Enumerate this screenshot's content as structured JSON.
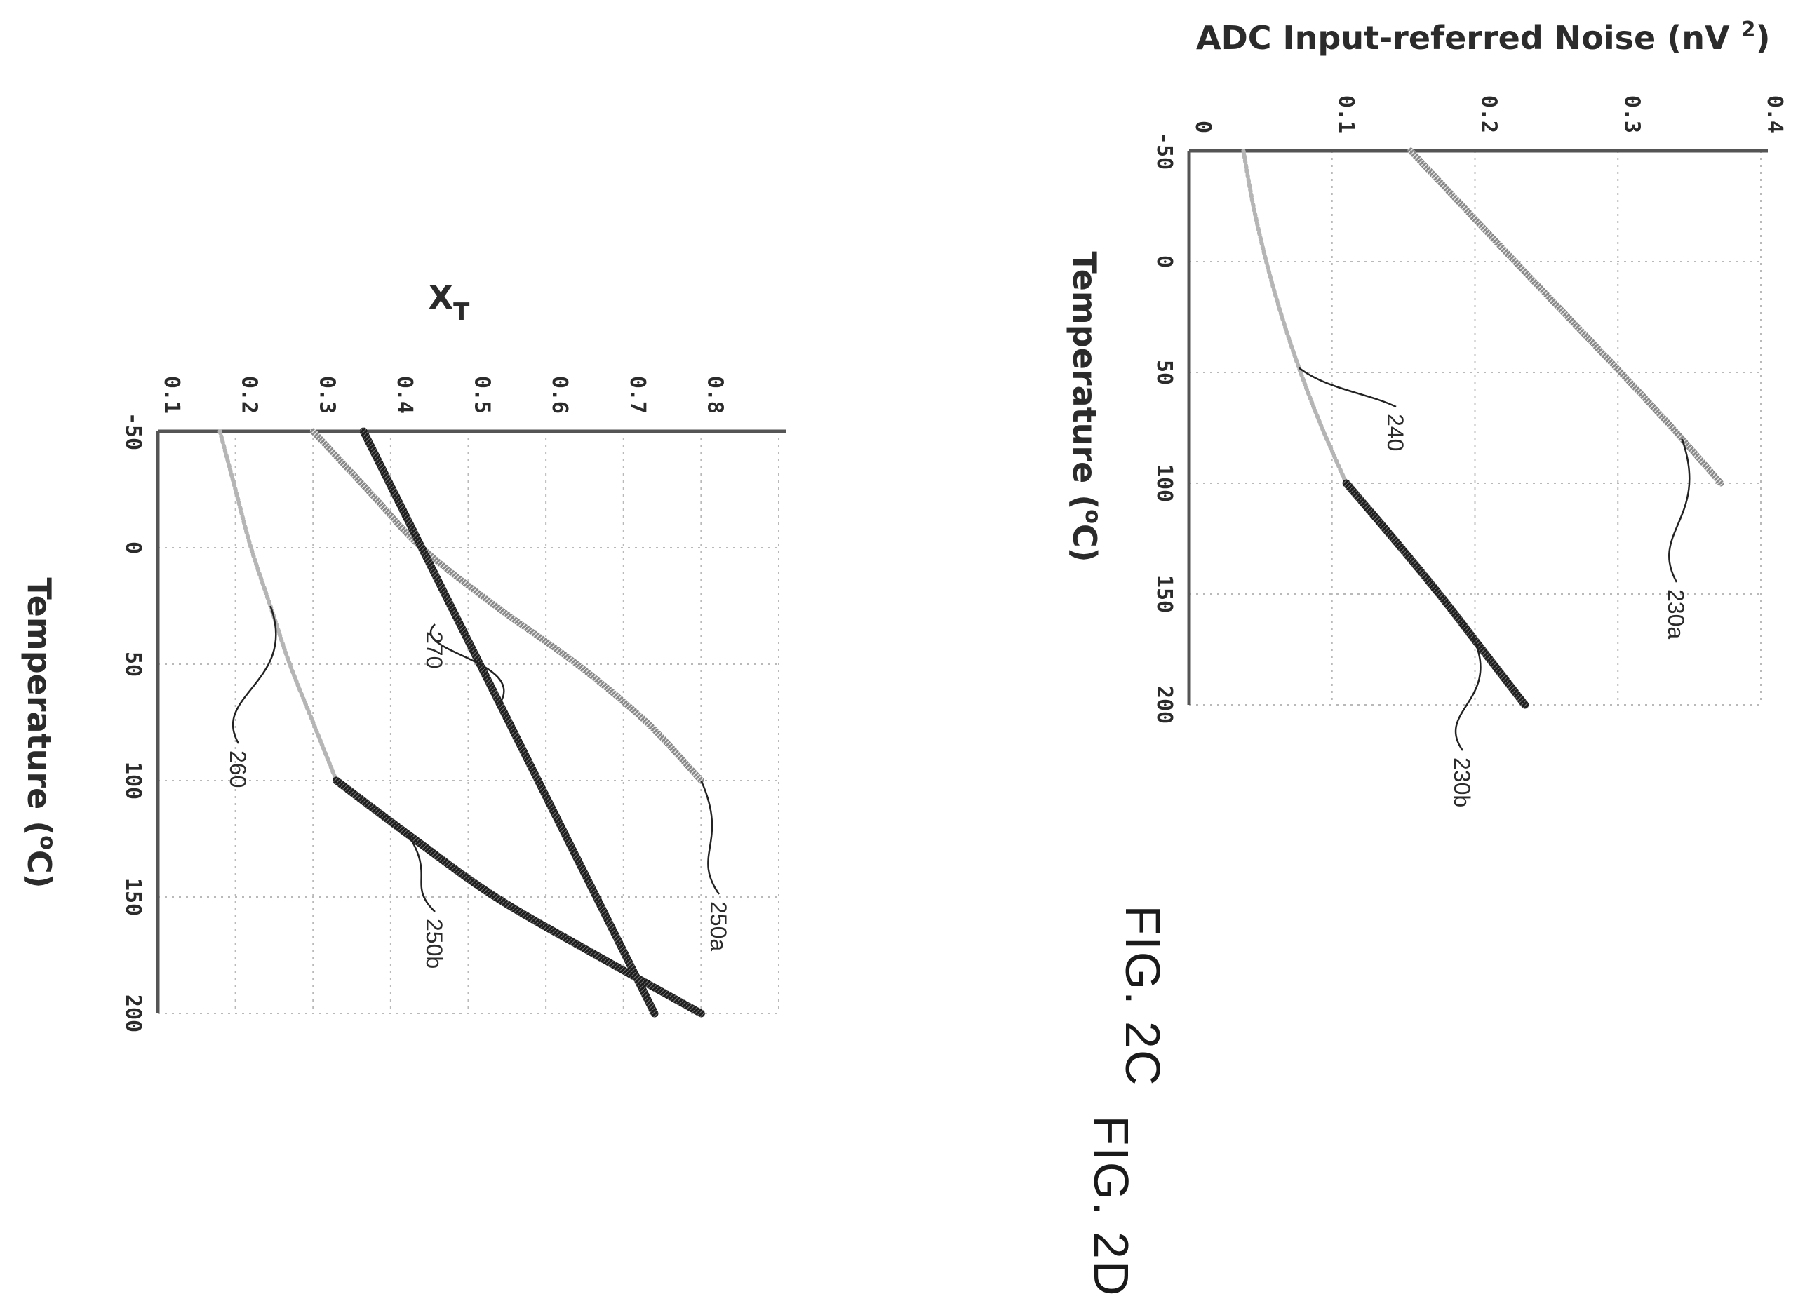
{
  "chart_data": [
    {
      "id": "fig-2c",
      "type": "line",
      "figure_label": "FIG. 2C",
      "xlabel": "Temperature (",
      "xlabel_sup": "o",
      "xlabel_tail": "C)",
      "ylabel": "ADC Input-referred Noise (nV ",
      "ylabel_sup": "2",
      "ylabel_tail": ")",
      "xlim": [
        -50,
        200
      ],
      "ylim": [
        0,
        0.4
      ],
      "x_ticks": [
        "-50",
        "0",
        "50",
        "100",
        "150",
        "200"
      ],
      "y_ticks": [
        "0",
        "0.1",
        "0.2",
        "0.3",
        "0.4"
      ],
      "grid": true,
      "series": [
        {
          "name": "230a",
          "style": "gray",
          "x": [
            -50,
            0,
            25,
            50,
            75,
            100
          ],
          "y": [
            0.155,
            0.228,
            0.265,
            0.302,
            0.338,
            0.372
          ]
        },
        {
          "name": "240",
          "style": "dotted",
          "x": [
            -50,
            -25,
            0,
            25,
            50,
            75,
            100
          ],
          "y": [
            0.038,
            0.045,
            0.054,
            0.065,
            0.078,
            0.093,
            0.11
          ]
        },
        {
          "name": "230b",
          "style": "black",
          "x": [
            100,
            125,
            150,
            175,
            200
          ],
          "y": [
            0.11,
            0.143,
            0.175,
            0.205,
            0.235
          ]
        }
      ],
      "annotations": [
        {
          "text": "230a",
          "series": "230a",
          "at_x": 80
        },
        {
          "text": "240",
          "series": "240",
          "at_x": 48
        },
        {
          "text": "230b",
          "series": "230b",
          "at_x": 170
        }
      ]
    },
    {
      "id": "fig-2d",
      "type": "line",
      "figure_label": "FIG. 2D",
      "xlabel": "Temperature (",
      "xlabel_sup": "o",
      "xlabel_tail": "C)",
      "ylabel": "X",
      "ylabel_sub": "T",
      "xlim": [
        -50,
        200
      ],
      "ylim": [
        0.1,
        0.9
      ],
      "x_ticks": [
        "-50",
        "0",
        "50",
        "100",
        "150",
        "200"
      ],
      "y_ticks": [
        "0.1",
        "0.2",
        "0.3",
        "0.4",
        "0.5",
        "0.6",
        "0.7",
        "0.8"
      ],
      "grid": true,
      "series": [
        {
          "name": "250a",
          "style": "gray",
          "x": [
            -50,
            -25,
            0,
            25,
            50,
            75,
            100
          ],
          "y": [
            0.3,
            0.37,
            0.44,
            0.535,
            0.64,
            0.73,
            0.8
          ]
        },
        {
          "name": "270",
          "style": "black",
          "x": [
            -50,
            200
          ],
          "y": [
            0.365,
            0.74
          ]
        },
        {
          "name": "260",
          "style": "dotted",
          "x": [
            -50,
            -25,
            0,
            25,
            50,
            75,
            100
          ],
          "y": [
            0.18,
            0.2,
            0.22,
            0.245,
            0.27,
            0.3,
            0.33
          ]
        },
        {
          "name": "250b",
          "style": "black",
          "x": [
            100,
            125,
            150,
            175,
            200
          ],
          "y": [
            0.33,
            0.43,
            0.535,
            0.665,
            0.8
          ]
        }
      ],
      "annotations": [
        {
          "text": "250a",
          "series": "250a",
          "at_x": 100
        },
        {
          "text": "270",
          "series": "270",
          "at_x": 67
        },
        {
          "text": "260",
          "series": "260",
          "at_x": 25
        },
        {
          "text": "250b",
          "series": "250b",
          "at_x": 123
        }
      ]
    }
  ]
}
